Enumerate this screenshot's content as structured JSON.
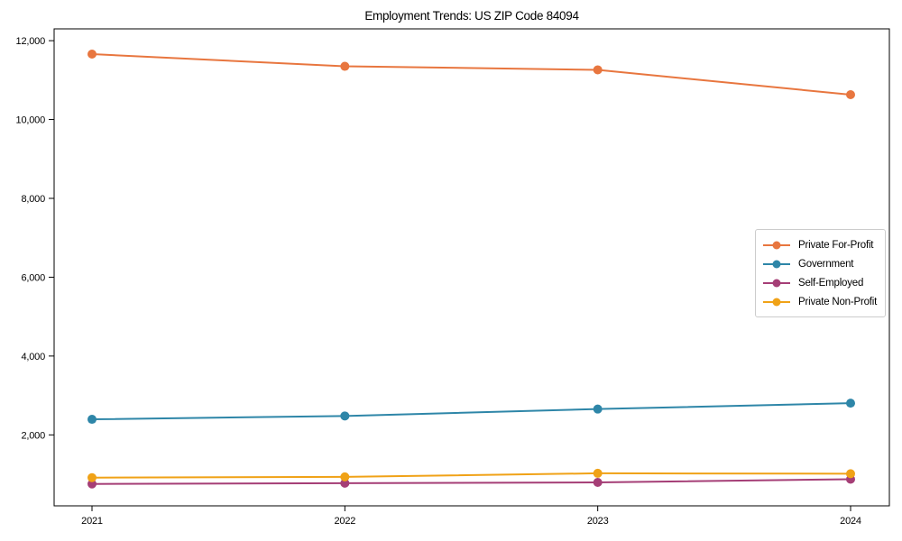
{
  "title": "Employment Trends: US ZIP Code 84094",
  "chart_data": {
    "type": "line",
    "title": "Employment Trends: US ZIP Code 84094",
    "xlabel": "",
    "ylabel": "",
    "x": [
      2021,
      2022,
      2023,
      2024
    ],
    "x_tick_labels": [
      "2021",
      "2022",
      "2023",
      "2024"
    ],
    "yticks": [
      2000,
      4000,
      6000,
      8000,
      10000,
      12000
    ],
    "ytick_labels": [
      "2,000",
      "4,000",
      "6,000",
      "8,000",
      "10,000",
      "12,000"
    ],
    "ylim": [
      200,
      12300
    ],
    "grid": false,
    "legend_position": "center right",
    "series": [
      {
        "name": "Private For-Profit",
        "color": "#E8763F",
        "values": [
          11660,
          11350,
          11260,
          10630
        ]
      },
      {
        "name": "Government",
        "color": "#2E86A8",
        "values": [
          2395,
          2480,
          2655,
          2805
        ]
      },
      {
        "name": "Self-Employed",
        "color": "#A53E76",
        "values": [
          755,
          775,
          795,
          875
        ]
      },
      {
        "name": "Private Non-Profit",
        "color": "#F0A217",
        "values": [
          915,
          935,
          1025,
          1015
        ]
      }
    ]
  }
}
